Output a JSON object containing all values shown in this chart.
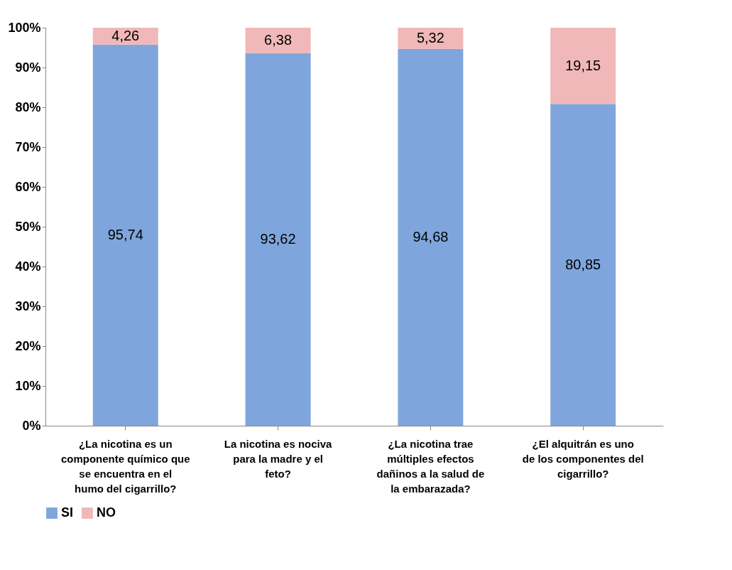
{
  "chart_data": {
    "type": "bar",
    "stacked": true,
    "categories": [
      "¿La nicotina es un componente químico que se encuentra en el humo del cigarrillo?",
      "La nicotina es nociva para la madre y el feto?",
      "¿La nicotina trae múltiples efectos dañinos a la salud de la embarazada?",
      "¿El alquitrán es uno de los componentes del cigarrillo?"
    ],
    "series": [
      {
        "name": "SI",
        "color": "#7fa6dc",
        "values": [
          95.74,
          93.62,
          94.68,
          80.85
        ],
        "value_labels": [
          "95,74",
          "93,62",
          "94,68",
          "80,85"
        ]
      },
      {
        "name": "NO",
        "color": "#f0b8b8",
        "values": [
          4.26,
          6.38,
          5.32,
          19.15
        ],
        "value_labels": [
          "4,26",
          "6,38",
          "5,32",
          "19,15"
        ]
      }
    ],
    "ylim": [
      0,
      100
    ],
    "yticks": [
      {
        "value": 0,
        "label": "0%"
      },
      {
        "value": 10,
        "label": "10%"
      },
      {
        "value": 20,
        "label": "20%"
      },
      {
        "value": 30,
        "label": "30%"
      },
      {
        "value": 40,
        "label": "40%"
      },
      {
        "value": 50,
        "label": "50%"
      },
      {
        "value": 60,
        "label": "60%"
      },
      {
        "value": 70,
        "label": "70%"
      },
      {
        "value": 80,
        "label": "80%"
      },
      {
        "value": 90,
        "label": "90%"
      },
      {
        "value": 100,
        "label": "100%"
      }
    ],
    "legend": "bottom"
  }
}
